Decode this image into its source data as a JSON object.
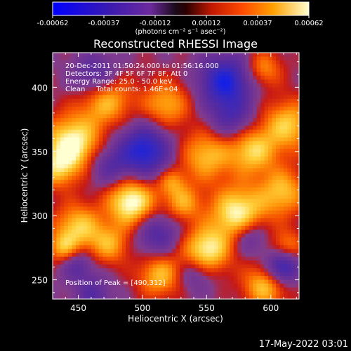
{
  "chart_data": {
    "type": "heatmap",
    "title": "Reconstructed RHESSI Image",
    "xlabel": "Heliocentric X (arcsec)",
    "ylabel": "Heliocentric Y (arcsec)",
    "xlim": [
      430,
      622
    ],
    "ylim": [
      235,
      427
    ],
    "x_ticks": [
      450,
      500,
      550,
      600
    ],
    "y_ticks": [
      250,
      300,
      350,
      400
    ],
    "colorbar": {
      "range": [
        -0.00062,
        0.00062
      ],
      "tick_labels": [
        "-0.00062",
        "-0.00037",
        "-0.00012",
        "0.00012",
        "0.00037",
        "0.00062"
      ],
      "unit_label": "(photons cm⁻² s⁻¹ asec⁻²)"
    },
    "annotations": [
      "20-Dec-2011 01:50:24.000 to 01:56:16.000",
      "Detectors: 3F 4F 5F 6F 7F 8F, Att 0",
      "Energy Range: 25.0 - 50.0 keV",
      "Clean     Total counts: 1.46E+04"
    ],
    "peak_label": "Position of Peak = [490,312]",
    "peak": [
      490,
      312
    ],
    "blobs": [
      {
        "x": 490,
        "y": 312,
        "s": 13,
        "a": 1.0
      },
      {
        "x": 444,
        "y": 358,
        "s": 15,
        "a": 0.95
      },
      {
        "x": 432,
        "y": 338,
        "s": 11,
        "a": 0.55
      },
      {
        "x": 470,
        "y": 392,
        "s": 14,
        "a": 0.7
      },
      {
        "x": 517,
        "y": 388,
        "s": 13,
        "a": 0.6
      },
      {
        "x": 548,
        "y": 348,
        "s": 14,
        "a": 0.65
      },
      {
        "x": 584,
        "y": 352,
        "s": 13,
        "a": 0.72
      },
      {
        "x": 612,
        "y": 372,
        "s": 14,
        "a": 0.7
      },
      {
        "x": 608,
        "y": 320,
        "s": 13,
        "a": 0.65
      },
      {
        "x": 573,
        "y": 303,
        "s": 15,
        "a": 0.92
      },
      {
        "x": 530,
        "y": 311,
        "s": 10,
        "a": 0.55
      },
      {
        "x": 521,
        "y": 328,
        "s": 8,
        "a": 0.45
      },
      {
        "x": 548,
        "y": 274,
        "s": 13,
        "a": 0.88
      },
      {
        "x": 512,
        "y": 255,
        "s": 12,
        "a": 0.65
      },
      {
        "x": 473,
        "y": 279,
        "s": 11,
        "a": 0.55
      },
      {
        "x": 448,
        "y": 292,
        "s": 13,
        "a": 0.72
      },
      {
        "x": 436,
        "y": 276,
        "s": 8,
        "a": 0.5
      },
      {
        "x": 594,
        "y": 247,
        "s": 12,
        "a": 0.7
      },
      {
        "x": 611,
        "y": 278,
        "s": 9,
        "a": 0.45
      },
      {
        "x": 593,
        "y": 416,
        "s": 10,
        "a": 0.5
      },
      {
        "x": 460,
        "y": 240,
        "s": 10,
        "a": -0.45
      },
      {
        "x": 500,
        "y": 352,
        "s": 14,
        "a": -0.95
      },
      {
        "x": 563,
        "y": 406,
        "s": 14,
        "a": -0.95
      },
      {
        "x": 462,
        "y": 410,
        "s": 12,
        "a": -0.6
      },
      {
        "x": 607,
        "y": 261,
        "s": 9,
        "a": -0.9
      },
      {
        "x": 510,
        "y": 287,
        "s": 12,
        "a": -0.55
      },
      {
        "x": 568,
        "y": 377,
        "s": 12,
        "a": -0.5
      },
      {
        "x": 472,
        "y": 340,
        "s": 11,
        "a": -0.45
      },
      {
        "x": 582,
        "y": 285,
        "s": 10,
        "a": -0.5
      },
      {
        "x": 448,
        "y": 263,
        "s": 9,
        "a": -0.45
      },
      {
        "x": 540,
        "y": 256,
        "s": 10,
        "a": -0.4
      }
    ]
  },
  "footer": {
    "timestamp": "17-May-2022 03:01"
  }
}
